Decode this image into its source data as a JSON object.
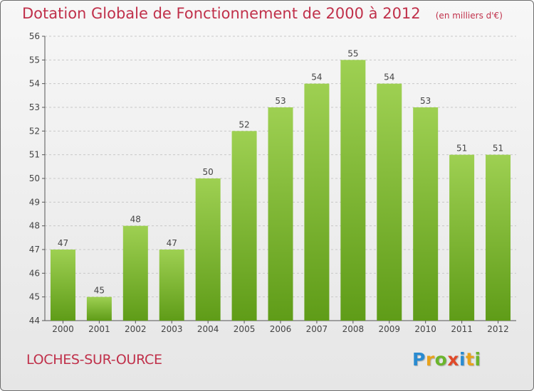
{
  "header": {
    "title": "Dotation Globale de Fonctionnement de 2000 à 2012",
    "unit": "(en milliers d'€)"
  },
  "footer": {
    "commune": "LOCHES-SUR-OURCE",
    "logo_text": "Proxiti",
    "logo_letters": [
      {
        "char": "P",
        "color": "#2a8bd0"
      },
      {
        "char": "r",
        "color": "#e8a21c"
      },
      {
        "char": "o",
        "color": "#6bb52c"
      },
      {
        "char": "x",
        "color": "#e04a2a"
      },
      {
        "char": "i",
        "color": "#2a8bd0"
      },
      {
        "char": "t",
        "color": "#e8a21c"
      },
      {
        "char": "i",
        "color": "#6bb52c"
      }
    ]
  },
  "colors": {
    "accent": "#c0304a",
    "bar_light": "#9ed052",
    "bar_dark": "#5f9c18",
    "grid": "#c8c8c8"
  },
  "chart_data": {
    "type": "bar",
    "title": "Dotation Globale de Fonctionnement de 2000 à 2012",
    "subtitle": "(en milliers d'€)",
    "categories": [
      "2000",
      "2001",
      "2002",
      "2003",
      "2004",
      "2005",
      "2006",
      "2007",
      "2008",
      "2009",
      "2010",
      "2011",
      "2012"
    ],
    "values": [
      47,
      45,
      48,
      47,
      50,
      52,
      53,
      54,
      55,
      54,
      53,
      51,
      51
    ],
    "data_labels": [
      "47",
      "45",
      "48",
      "47",
      "50",
      "52",
      "53",
      "54",
      "55",
      "54",
      "53",
      "51",
      "51"
    ],
    "ylim": [
      44,
      56
    ],
    "yticks": [
      44,
      45,
      46,
      47,
      48,
      49,
      50,
      51,
      52,
      53,
      54,
      55,
      56
    ],
    "grid": "horizontal-dashed",
    "legend": "none"
  }
}
